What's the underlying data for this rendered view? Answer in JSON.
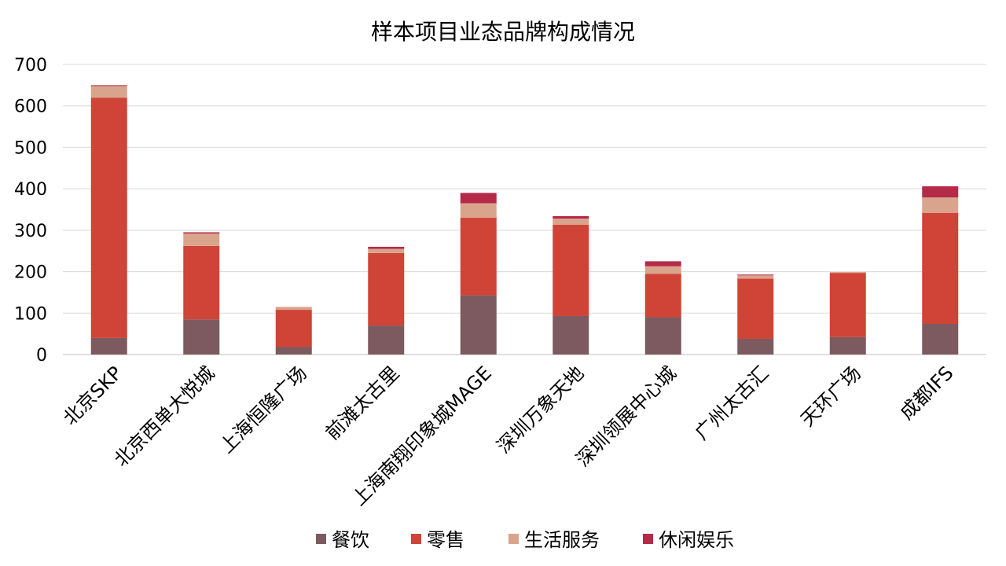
{
  "chart_data": {
    "type": "bar",
    "stacked": true,
    "title": "样本项目业态品牌构成情况",
    "xlabel": "",
    "ylabel": "",
    "ylim": [
      0,
      700
    ],
    "yticks": [
      0,
      100,
      200,
      300,
      400,
      500,
      600,
      700
    ],
    "grid": true,
    "legend_position": "bottom",
    "categories": [
      "北京SKP",
      "北京西单大悦城",
      "上海恒隆广场",
      "前滩太古里",
      "上海南翔印象城MAGE",
      "深圳万象天地",
      "深圳领展中心城",
      "广州太古汇",
      "天环广场",
      "成都IFS"
    ],
    "series": [
      {
        "name": "餐饮",
        "color": "#7d5a5f",
        "values": [
          40,
          85,
          18,
          70,
          143,
          93,
          90,
          38,
          42,
          74
        ]
      },
      {
        "name": "零售",
        "color": "#cf4436",
        "values": [
          580,
          177,
          90,
          175,
          187,
          220,
          105,
          145,
          155,
          268
        ]
      },
      {
        "name": "生活服务",
        "color": "#d9a48c",
        "values": [
          28,
          30,
          7,
          10,
          35,
          15,
          18,
          8,
          2,
          37
        ]
      },
      {
        "name": "休闲娱乐",
        "color": "#b52a48",
        "values": [
          2,
          3,
          0,
          5,
          25,
          6,
          12,
          2,
          0,
          27
        ]
      }
    ]
  }
}
